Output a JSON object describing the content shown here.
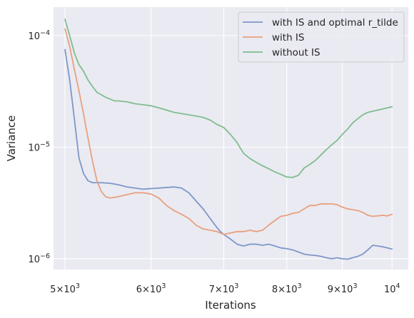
{
  "chart_data": {
    "type": "line",
    "xscale": "log",
    "yscale": "log",
    "xlabel": "Iterations",
    "ylabel": "Variance",
    "xlim": [
      4880,
      10350
    ],
    "ylim": [
      8e-07,
      0.00018
    ],
    "grid": true,
    "legend_position": "top-right",
    "x_ticks": [
      {
        "value": 5000,
        "mantissa": "5",
        "exp": "3"
      },
      {
        "value": 6000,
        "mantissa": "6",
        "exp": "3"
      },
      {
        "value": 7000,
        "mantissa": "7",
        "exp": "3"
      },
      {
        "value": 8000,
        "mantissa": "8",
        "exp": "3"
      },
      {
        "value": 9000,
        "mantissa": "9",
        "exp": "3"
      },
      {
        "value": 10000,
        "base": "10",
        "exp": "4"
      }
    ],
    "y_ticks": [
      {
        "value": 1e-06,
        "base": "10",
        "exp": "−6"
      },
      {
        "value": 1e-05,
        "base": "10",
        "exp": "−5"
      },
      {
        "value": 0.0001,
        "base": "10",
        "exp": "−4"
      }
    ],
    "series": [
      {
        "name": "with IS and optimal r_tilde",
        "color": "#7e96c9",
        "x": [
          5000,
          5050,
          5100,
          5150,
          5200,
          5250,
          5300,
          5400,
          5500,
          5600,
          5700,
          5800,
          5900,
          6000,
          6100,
          6200,
          6300,
          6400,
          6500,
          6600,
          6700,
          6800,
          6900,
          6950,
          7000,
          7100,
          7200,
          7300,
          7400,
          7500,
          7600,
          7700,
          7800,
          7900,
          8000,
          8100,
          8200,
          8300,
          8400,
          8500,
          8600,
          8700,
          8800,
          8900,
          9000,
          9100,
          9200,
          9300,
          9400,
          9500,
          9600,
          9700,
          9800,
          9900,
          10000
        ],
        "y": [
          7.5e-05,
          4e-05,
          1.8e-05,
          8e-06,
          5.8e-06,
          5e-06,
          4.8e-06,
          4.8e-06,
          4.75e-06,
          4.6e-06,
          4.4e-06,
          4.3e-06,
          4.2e-06,
          4.25e-06,
          4.3e-06,
          4.35e-06,
          4.4e-06,
          4.3e-06,
          3.9e-06,
          3.3e-06,
          2.8e-06,
          2.3e-06,
          1.9e-06,
          1.75e-06,
          1.65e-06,
          1.5e-06,
          1.35e-06,
          1.3e-06,
          1.35e-06,
          1.35e-06,
          1.32e-06,
          1.35e-06,
          1.3e-06,
          1.25e-06,
          1.23e-06,
          1.2e-06,
          1.15e-06,
          1.1e-06,
          1.08e-06,
          1.07e-06,
          1.05e-06,
          1.02e-06,
          1e-06,
          1.02e-06,
          1e-06,
          9.9e-07,
          1.02e-06,
          1.05e-06,
          1.1e-06,
          1.2e-06,
          1.32e-06,
          1.3e-06,
          1.28e-06,
          1.25e-06,
          1.22e-06
        ]
      },
      {
        "name": "with IS",
        "color": "#e8a07e",
        "x": [
          5000,
          5050,
          5100,
          5150,
          5200,
          5250,
          5300,
          5350,
          5400,
          5450,
          5500,
          5600,
          5700,
          5800,
          5900,
          6000,
          6100,
          6200,
          6300,
          6400,
          6500,
          6600,
          6700,
          6800,
          6900,
          7000,
          7100,
          7200,
          7300,
          7400,
          7500,
          7600,
          7700,
          7800,
          7900,
          8000,
          8100,
          8200,
          8300,
          8400,
          8500,
          8600,
          8700,
          8800,
          8900,
          9000,
          9100,
          9200,
          9300,
          9400,
          9500,
          9600,
          9700,
          9800,
          9900,
          10000
        ],
        "y": [
          0.000115,
          8e-05,
          5e-05,
          3.2e-05,
          2e-05,
          1.2e-05,
          7.5e-06,
          5e-06,
          4e-06,
          3.6e-06,
          3.5e-06,
          3.6e-06,
          3.75e-06,
          3.9e-06,
          3.9e-06,
          3.8e-06,
          3.5e-06,
          3e-06,
          2.7e-06,
          2.5e-06,
          2.3e-06,
          2e-06,
          1.85e-06,
          1.8e-06,
          1.75e-06,
          1.65e-06,
          1.7e-06,
          1.75e-06,
          1.75e-06,
          1.8e-06,
          1.75e-06,
          1.8e-06,
          2e-06,
          2.2e-06,
          2.4e-06,
          2.45e-06,
          2.55e-06,
          2.6e-06,
          2.8e-06,
          3e-06,
          3e-06,
          3.1e-06,
          3.1e-06,
          3.1e-06,
          3.05e-06,
          2.9e-06,
          2.8e-06,
          2.75e-06,
          2.7e-06,
          2.6e-06,
          2.45e-06,
          2.4e-06,
          2.42e-06,
          2.45e-06,
          2.42e-06,
          2.5e-06
        ]
      },
      {
        "name": "without IS",
        "color": "#7fbd8e",
        "x": [
          5000,
          5050,
          5100,
          5150,
          5200,
          5250,
          5300,
          5350,
          5400,
          5450,
          5500,
          5550,
          5600,
          5700,
          5800,
          5900,
          6000,
          6100,
          6200,
          6300,
          6400,
          6500,
          6600,
          6700,
          6800,
          6900,
          7000,
          7100,
          7200,
          7300,
          7400,
          7500,
          7600,
          7700,
          7800,
          7900,
          8000,
          8100,
          8200,
          8300,
          8400,
          8500,
          8600,
          8700,
          8800,
          8900,
          9000,
          9100,
          9200,
          9300,
          9400,
          9500,
          9600,
          9700,
          9800,
          9900,
          10000
        ],
        "y": [
          0.00014,
          0.0001,
          7e-05,
          5.5e-05,
          4.8e-05,
          4e-05,
          3.5e-05,
          3.1e-05,
          2.95e-05,
          2.8e-05,
          2.7e-05,
          2.6e-05,
          2.6e-05,
          2.55e-05,
          2.45e-05,
          2.4e-05,
          2.35e-05,
          2.25e-05,
          2.15e-05,
          2.05e-05,
          2e-05,
          1.95e-05,
          1.9e-05,
          1.85e-05,
          1.75e-05,
          1.6e-05,
          1.5e-05,
          1.3e-05,
          1.1e-05,
          8.8e-06,
          7.9e-06,
          7.3e-06,
          6.8e-06,
          6.4e-06,
          6e-06,
          5.7e-06,
          5.4e-06,
          5.35e-06,
          5.6e-06,
          6.5e-06,
          7e-06,
          7.6e-06,
          8.5e-06,
          9.5e-06,
          1.05e-05,
          1.15e-05,
          1.3e-05,
          1.45e-05,
          1.65e-05,
          1.8e-05,
          1.95e-05,
          2.05e-05,
          2.1e-05,
          2.15e-05,
          2.2e-05,
          2.25e-05,
          2.3e-05
        ]
      }
    ]
  }
}
